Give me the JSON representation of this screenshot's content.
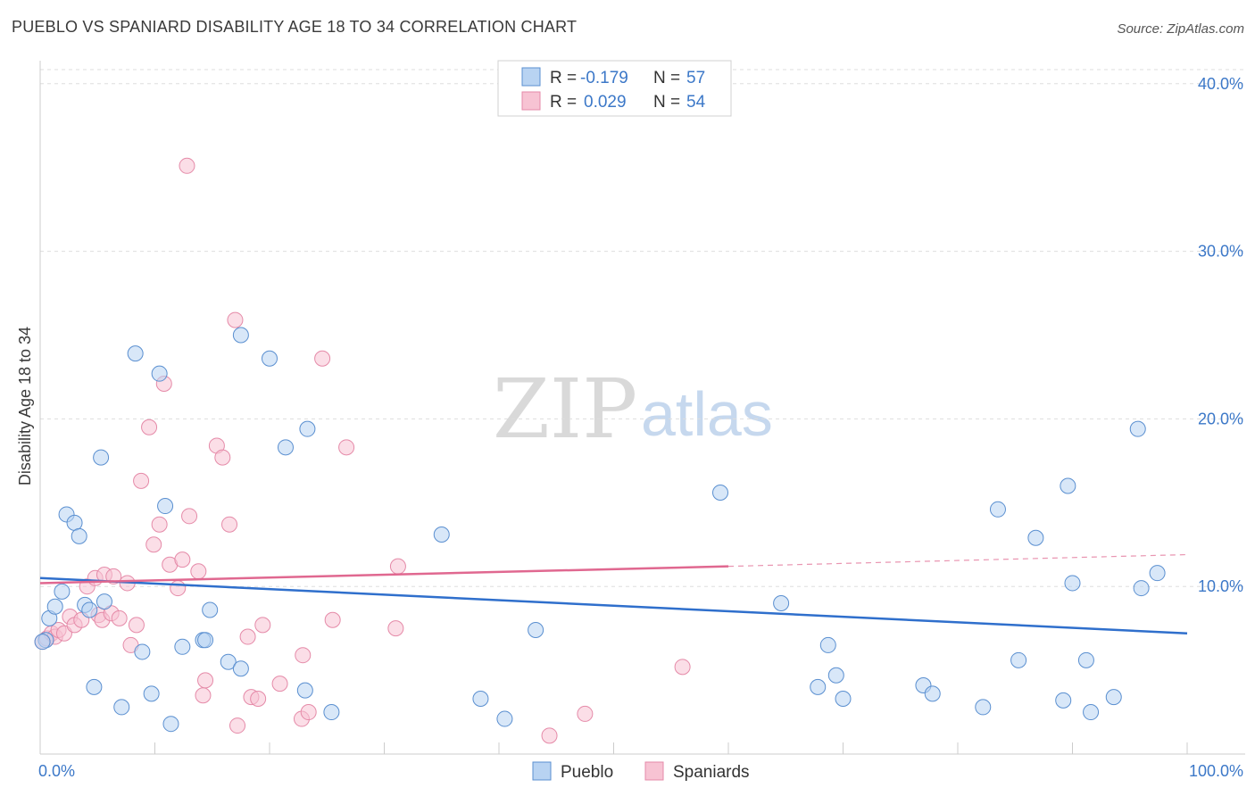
{
  "header": {
    "title": "PUEBLO VS SPANIARD DISABILITY AGE 18 TO 34 CORRELATION CHART",
    "source": "Source: ZipAtlas.com"
  },
  "watermark": {
    "zip": "ZIP",
    "atlas": "atlas"
  },
  "colors": {
    "pueblo_fill": "#b8d3f2",
    "pueblo_stroke": "#5a8fd0",
    "pueblo_line": "#2f6fcc",
    "spaniard_fill": "#f7c3d3",
    "spaniard_stroke": "#e58aa8",
    "spaniard_line": "#e06890",
    "tick": "#3c78c8",
    "grid": "#dddddd"
  },
  "legend": {
    "rows": [
      {
        "r_label": "R =",
        "r_value": "-0.179",
        "n_label": "N =",
        "n_value": "57"
      },
      {
        "r_label": "R =",
        "r_value": "0.029",
        "n_label": "N =",
        "n_value": "54"
      }
    ]
  },
  "bottom_legend": {
    "pueblo": "Pueblo",
    "spaniards": "Spaniards"
  },
  "chart_data": {
    "type": "scatter",
    "title": "PUEBLO VS SPANIARD DISABILITY AGE 18 TO 34 CORRELATION CHART",
    "xlabel": "",
    "ylabel": "Disability Age 18 to 34",
    "xlim": [
      0,
      100
    ],
    "ylim": [
      0,
      41
    ],
    "x_tick_labels": [
      "0.0%",
      "100.0%"
    ],
    "y_ticks": [
      10,
      20,
      30,
      40
    ],
    "y_tick_labels": [
      "10.0%",
      "20.0%",
      "30.0%",
      "40.0%"
    ],
    "grid": true,
    "series": [
      {
        "name": "Pueblo",
        "R": -0.179,
        "N": 57,
        "trend": {
          "x0": 0,
          "y0": 10.5,
          "x1": 100,
          "y1": 7.2
        },
        "points": [
          [
            0.5,
            6.8
          ],
          [
            0.8,
            8.1
          ],
          [
            1.3,
            8.8
          ],
          [
            1.9,
            9.7
          ],
          [
            2.3,
            14.3
          ],
          [
            3.0,
            13.8
          ],
          [
            3.4,
            13.0
          ],
          [
            3.9,
            8.9
          ],
          [
            4.3,
            8.6
          ],
          [
            4.7,
            4.0
          ],
          [
            5.3,
            17.7
          ],
          [
            5.6,
            9.1
          ],
          [
            7.1,
            2.8
          ],
          [
            8.3,
            23.9
          ],
          [
            8.9,
            6.1
          ],
          [
            9.7,
            3.6
          ],
          [
            10.4,
            22.7
          ],
          [
            10.9,
            14.8
          ],
          [
            11.4,
            1.8
          ],
          [
            12.4,
            6.4
          ],
          [
            14.2,
            6.8
          ],
          [
            14.4,
            6.8
          ],
          [
            14.8,
            8.6
          ],
          [
            16.4,
            5.5
          ],
          [
            17.5,
            5.1
          ],
          [
            17.5,
            25.0
          ],
          [
            20.0,
            23.6
          ],
          [
            21.4,
            18.3
          ],
          [
            23.1,
            3.8
          ],
          [
            23.3,
            19.4
          ],
          [
            25.4,
            2.5
          ],
          [
            35.0,
            13.1
          ],
          [
            38.4,
            3.3
          ],
          [
            40.5,
            2.1
          ],
          [
            43.2,
            7.4
          ],
          [
            59.3,
            15.6
          ],
          [
            64.6,
            9.0
          ],
          [
            67.8,
            4.0
          ],
          [
            68.7,
            6.5
          ],
          [
            69.4,
            4.7
          ],
          [
            70.0,
            3.3
          ],
          [
            77.0,
            4.1
          ],
          [
            77.8,
            3.6
          ],
          [
            82.2,
            2.8
          ],
          [
            83.5,
            14.6
          ],
          [
            85.3,
            5.6
          ],
          [
            86.8,
            12.9
          ],
          [
            89.2,
            3.2
          ],
          [
            89.6,
            16.0
          ],
          [
            90.0,
            10.2
          ],
          [
            91.2,
            5.6
          ],
          [
            91.6,
            2.5
          ],
          [
            93.6,
            3.4
          ],
          [
            95.7,
            19.4
          ],
          [
            96.0,
            9.9
          ],
          [
            97.4,
            10.8
          ],
          [
            0.2,
            6.7
          ]
        ]
      },
      {
        "name": "Spaniards",
        "R": 0.029,
        "N": 54,
        "trend": {
          "x0": 0,
          "y0": 10.2,
          "x1": 60,
          "y1": 11.2,
          "dash_x1": 100,
          "dash_y1": 11.9
        },
        "points": [
          [
            0.2,
            6.7
          ],
          [
            0.6,
            6.9
          ],
          [
            1.0,
            7.2
          ],
          [
            1.3,
            7.0
          ],
          [
            1.6,
            7.4
          ],
          [
            2.1,
            7.2
          ],
          [
            2.6,
            8.2
          ],
          [
            3.0,
            7.7
          ],
          [
            3.6,
            8.0
          ],
          [
            4.1,
            10.0
          ],
          [
            4.8,
            10.5
          ],
          [
            5.1,
            8.3
          ],
          [
            5.4,
            8.0
          ],
          [
            5.6,
            10.7
          ],
          [
            6.2,
            8.4
          ],
          [
            6.4,
            10.6
          ],
          [
            6.9,
            8.1
          ],
          [
            7.6,
            10.2
          ],
          [
            7.9,
            6.5
          ],
          [
            8.4,
            7.7
          ],
          [
            8.8,
            16.3
          ],
          [
            9.5,
            19.5
          ],
          [
            9.9,
            12.5
          ],
          [
            10.4,
            13.7
          ],
          [
            10.8,
            22.1
          ],
          [
            11.3,
            11.3
          ],
          [
            12.0,
            9.9
          ],
          [
            12.4,
            11.6
          ],
          [
            12.8,
            35.1
          ],
          [
            13.0,
            14.2
          ],
          [
            13.8,
            10.9
          ],
          [
            14.2,
            3.5
          ],
          [
            14.4,
            4.4
          ],
          [
            15.4,
            18.4
          ],
          [
            15.9,
            17.7
          ],
          [
            16.5,
            13.7
          ],
          [
            17.0,
            25.9
          ],
          [
            17.2,
            1.7
          ],
          [
            18.1,
            7.0
          ],
          [
            18.4,
            3.4
          ],
          [
            19.0,
            3.3
          ],
          [
            19.4,
            7.7
          ],
          [
            20.9,
            4.2
          ],
          [
            22.8,
            2.1
          ],
          [
            22.9,
            5.9
          ],
          [
            23.4,
            2.5
          ],
          [
            24.6,
            23.6
          ],
          [
            25.5,
            8.0
          ],
          [
            26.7,
            18.3
          ],
          [
            31.0,
            7.5
          ],
          [
            31.2,
            11.2
          ],
          [
            44.4,
            1.1
          ],
          [
            47.5,
            2.4
          ],
          [
            56.0,
            5.2
          ]
        ]
      }
    ]
  }
}
